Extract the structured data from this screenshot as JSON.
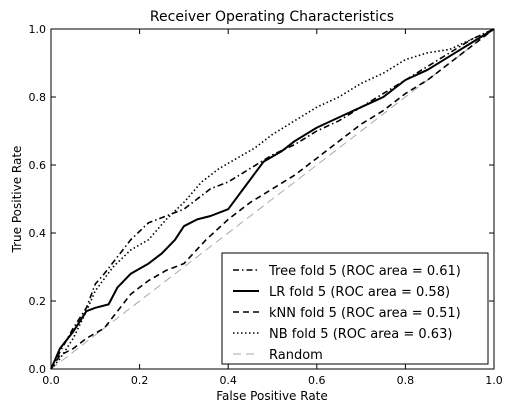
{
  "chart_data": {
    "type": "line",
    "title": "Receiver Operating Characteristics",
    "xlabel": "False Positive Rate",
    "ylabel": "True Positive Rate",
    "xlim": [
      0.0,
      1.0
    ],
    "ylim": [
      0.0,
      1.0
    ],
    "x_ticks": [
      "0.0",
      "0.2",
      "0.4",
      "0.6",
      "0.8",
      "1.0"
    ],
    "y_ticks": [
      "0.0",
      "0.2",
      "0.4",
      "0.6",
      "0.8",
      "1.0"
    ],
    "grid": false,
    "legend_position": "bottom-right",
    "series": [
      {
        "name": "Tree fold 5 (ROC area = 0.61)",
        "style": "dashdot",
        "color": "#000000",
        "x": [
          0.0,
          0.02,
          0.05,
          0.08,
          0.1,
          0.12,
          0.15,
          0.18,
          0.22,
          0.26,
          0.3,
          0.33,
          0.36,
          0.4,
          0.45,
          0.5,
          0.55,
          0.6,
          0.65,
          0.7,
          0.75,
          0.8,
          0.85,
          0.9,
          0.95,
          1.0
        ],
        "y": [
          0.0,
          0.05,
          0.12,
          0.18,
          0.25,
          0.28,
          0.33,
          0.38,
          0.43,
          0.45,
          0.47,
          0.5,
          0.53,
          0.55,
          0.59,
          0.63,
          0.66,
          0.7,
          0.73,
          0.77,
          0.81,
          0.85,
          0.89,
          0.93,
          0.97,
          1.0
        ]
      },
      {
        "name": "LR fold 5 (ROC area = 0.58)",
        "style": "solid",
        "color": "#000000",
        "x": [
          0.0,
          0.02,
          0.05,
          0.08,
          0.1,
          0.13,
          0.15,
          0.18,
          0.22,
          0.25,
          0.28,
          0.3,
          0.33,
          0.36,
          0.4,
          0.44,
          0.48,
          0.52,
          0.55,
          0.6,
          0.65,
          0.7,
          0.75,
          0.8,
          0.85,
          0.9,
          0.95,
          1.0
        ],
        "y": [
          0.0,
          0.06,
          0.11,
          0.17,
          0.18,
          0.19,
          0.24,
          0.28,
          0.31,
          0.34,
          0.38,
          0.42,
          0.44,
          0.45,
          0.47,
          0.54,
          0.61,
          0.64,
          0.67,
          0.71,
          0.74,
          0.77,
          0.8,
          0.85,
          0.88,
          0.92,
          0.96,
          1.0
        ]
      },
      {
        "name": "kNN fold 5 (ROC area = 0.51)",
        "style": "dashed",
        "color": "#000000",
        "x": [
          0.0,
          0.02,
          0.05,
          0.08,
          0.12,
          0.15,
          0.18,
          0.22,
          0.26,
          0.3,
          0.35,
          0.4,
          0.45,
          0.5,
          0.55,
          0.6,
          0.65,
          0.7,
          0.75,
          0.8,
          0.85,
          0.9,
          0.95,
          1.0
        ],
        "y": [
          0.0,
          0.04,
          0.06,
          0.09,
          0.12,
          0.17,
          0.22,
          0.26,
          0.29,
          0.31,
          0.38,
          0.44,
          0.49,
          0.53,
          0.57,
          0.62,
          0.67,
          0.72,
          0.76,
          0.81,
          0.85,
          0.9,
          0.95,
          1.0
        ]
      },
      {
        "name": "NB fold 5 (ROC area = 0.63)",
        "style": "dotted",
        "color": "#000000",
        "x": [
          0.0,
          0.02,
          0.05,
          0.08,
          0.1,
          0.14,
          0.18,
          0.22,
          0.26,
          0.3,
          0.34,
          0.38,
          0.42,
          0.46,
          0.5,
          0.55,
          0.6,
          0.65,
          0.7,
          0.75,
          0.8,
          0.85,
          0.9,
          0.95,
          1.0
        ],
        "y": [
          0.0,
          0.03,
          0.09,
          0.17,
          0.23,
          0.3,
          0.35,
          0.38,
          0.44,
          0.49,
          0.55,
          0.59,
          0.62,
          0.65,
          0.69,
          0.73,
          0.77,
          0.8,
          0.84,
          0.87,
          0.91,
          0.93,
          0.94,
          0.97,
          1.0
        ]
      },
      {
        "name": "Random",
        "style": "dashed",
        "color": "#aaaaaa",
        "x": [
          0.0,
          1.0
        ],
        "y": [
          0.0,
          1.0
        ]
      }
    ]
  }
}
